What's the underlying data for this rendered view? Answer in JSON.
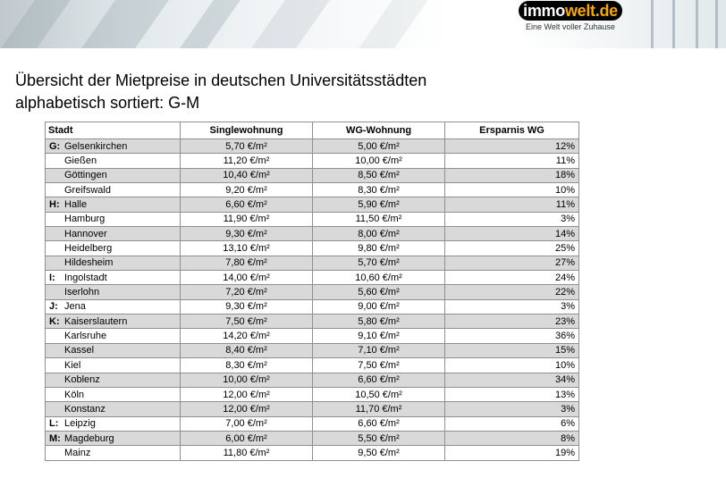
{
  "banner": {
    "logo": {
      "part1": "immo",
      "part2": "welt.de"
    },
    "tagline": "Eine Welt voller Zuhause"
  },
  "title": {
    "line1": "Übersicht der Mietpreise in deutschen Universitätsstädten",
    "line2": "alphabetisch sortiert: G-M"
  },
  "table": {
    "headers": [
      "Stadt",
      "Singlewohnung",
      "WG-Wohnung",
      "Ersparnis WG"
    ],
    "rows": [
      {
        "letter": "G:",
        "city": "Gelsenkirchen",
        "single": "5,70 €/m²",
        "wg": "5,00 €/m²",
        "savings": "12%"
      },
      {
        "letter": "",
        "city": "Gießen",
        "single": "11,20 €/m²",
        "wg": "10,00 €/m²",
        "savings": "11%"
      },
      {
        "letter": "",
        "city": "Göttingen",
        "single": "10,40 €/m²",
        "wg": "8,50 €/m²",
        "savings": "18%"
      },
      {
        "letter": "",
        "city": "Greifswald",
        "single": "9,20 €/m²",
        "wg": "8,30 €/m²",
        "savings": "10%"
      },
      {
        "letter": "H:",
        "city": "Halle",
        "single": "6,60 €/m²",
        "wg": "5,90 €/m²",
        "savings": "11%"
      },
      {
        "letter": "",
        "city": "Hamburg",
        "single": "11,90 €/m²",
        "wg": "11,50 €/m²",
        "savings": "3%"
      },
      {
        "letter": "",
        "city": "Hannover",
        "single": "9,30 €/m²",
        "wg": "8,00 €/m²",
        "savings": "14%"
      },
      {
        "letter": "",
        "city": "Heidelberg",
        "single": "13,10 €/m²",
        "wg": "9,80 €/m²",
        "savings": "25%"
      },
      {
        "letter": "",
        "city": "Hildesheim",
        "single": "7,80 €/m²",
        "wg": "5,70 €/m²",
        "savings": "27%"
      },
      {
        "letter": "I:",
        "city": "Ingolstadt",
        "single": "14,00 €/m²",
        "wg": "10,60 €/m²",
        "savings": "24%"
      },
      {
        "letter": "",
        "city": "Iserlohn",
        "single": "7,20 €/m²",
        "wg": "5,60 €/m²",
        "savings": "22%"
      },
      {
        "letter": "J:",
        "city": "Jena",
        "single": "9,30 €/m²",
        "wg": "9,00 €/m²",
        "savings": "3%"
      },
      {
        "letter": "K:",
        "city": "Kaiserslautern",
        "single": "7,50 €/m²",
        "wg": "5,80 €/m²",
        "savings": "23%"
      },
      {
        "letter": "",
        "city": "Karlsruhe",
        "single": "14,20 €/m²",
        "wg": "9,10 €/m²",
        "savings": "36%"
      },
      {
        "letter": "",
        "city": "Kassel",
        "single": "8,40 €/m²",
        "wg": "7,10 €/m²",
        "savings": "15%"
      },
      {
        "letter": "",
        "city": "Kiel",
        "single": "8,30 €/m²",
        "wg": "7,50 €/m²",
        "savings": "10%"
      },
      {
        "letter": "",
        "city": "Koblenz",
        "single": "10,00 €/m²",
        "wg": "6,60 €/m²",
        "savings": "34%"
      },
      {
        "letter": "",
        "city": "Köln",
        "single": "12,00 €/m²",
        "wg": "10,50 €/m²",
        "savings": "13%"
      },
      {
        "letter": "",
        "city": "Konstanz",
        "single": "12,00 €/m²",
        "wg": "11,70 €/m²",
        "savings": "3%"
      },
      {
        "letter": "L:",
        "city": "Leipzig",
        "single": "7,00 €/m²",
        "wg": "6,60 €/m²",
        "savings": "6%"
      },
      {
        "letter": "M:",
        "city": "Magdeburg",
        "single": "6,00 €/m²",
        "wg": "5,50 €/m²",
        "savings": "8%"
      },
      {
        "letter": "",
        "city": "Mainz",
        "single": "11,80 €/m²",
        "wg": "9,50 €/m²",
        "savings": "19%"
      }
    ]
  }
}
